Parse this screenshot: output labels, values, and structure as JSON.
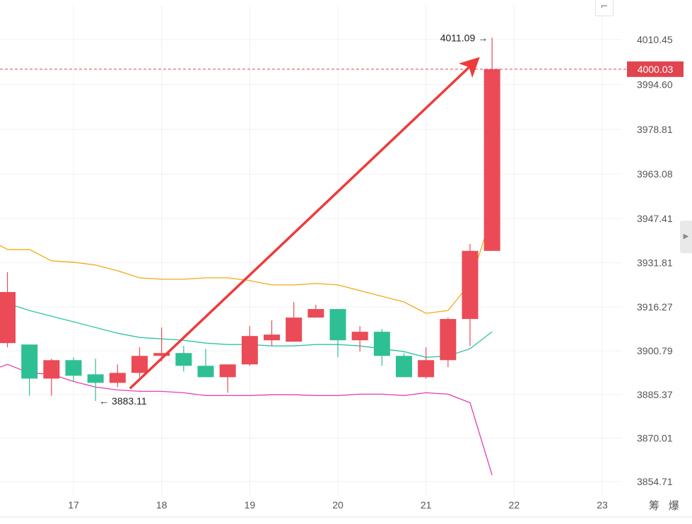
{
  "chart_data": {
    "type": "candlestick",
    "y_axis": {
      "ticks": [
        "4010.45",
        "3994.60",
        "3978.81",
        "3963.08",
        "3947.41",
        "3931.81",
        "3916.27",
        "3900.79",
        "3885.37",
        "3870.01",
        "3854.71"
      ],
      "range": [
        3848,
        4018
      ]
    },
    "x_axis": {
      "ticks": [
        {
          "label": "17",
          "x": 17.0
        },
        {
          "label": "18",
          "x": 18.0
        },
        {
          "label": "19",
          "x": 19.0
        },
        {
          "label": "20",
          "x": 20.0
        },
        {
          "label": "21",
          "x": 21.0
        },
        {
          "label": "22",
          "x": 22.0
        },
        {
          "label": "23",
          "x": 23.0
        }
      ],
      "range": [
        16.16,
        23.18
      ]
    },
    "candles": [
      {
        "x": 16.25,
        "open": 3903.5,
        "high": 3928.5,
        "low": 3902.0,
        "close": 3921.5
      },
      {
        "x": 16.5,
        "open": 3903.0,
        "high": 3903.0,
        "low": 3885.0,
        "close": 3891.0
      },
      {
        "x": 16.75,
        "open": 3891.0,
        "high": 3898.0,
        "low": 3885.0,
        "close": 3897.5
      },
      {
        "x": 17.0,
        "open": 3897.5,
        "high": 3898.5,
        "low": 3890.0,
        "close": 3892.0
      },
      {
        "x": 17.25,
        "open": 3892.5,
        "high": 3898.0,
        "low": 3883.11,
        "close": 3889.5
      },
      {
        "x": 17.5,
        "open": 3889.5,
        "high": 3896.0,
        "low": 3888.0,
        "close": 3893.0
      },
      {
        "x": 17.75,
        "open": 3893.0,
        "high": 3902.0,
        "low": 3891.5,
        "close": 3899.0
      },
      {
        "x": 18.0,
        "open": 3899.0,
        "high": 3909.0,
        "low": 3897.0,
        "close": 3900.0
      },
      {
        "x": 18.25,
        "open": 3900.0,
        "high": 3902.5,
        "low": 3893.5,
        "close": 3895.5
      },
      {
        "x": 18.5,
        "open": 3895.5,
        "high": 3901.5,
        "low": 3892.0,
        "close": 3891.5
      },
      {
        "x": 18.75,
        "open": 3891.5,
        "high": 3896.0,
        "low": 3886.0,
        "close": 3896.0
      },
      {
        "x": 19.0,
        "open": 3896.0,
        "high": 3909.5,
        "low": 3895.5,
        "close": 3906.0
      },
      {
        "x": 19.25,
        "open": 3904.5,
        "high": 3911.5,
        "low": 3902.5,
        "close": 3906.5
      },
      {
        "x": 19.5,
        "open": 3904.0,
        "high": 3918.0,
        "low": 3904.0,
        "close": 3912.5
      },
      {
        "x": 19.75,
        "open": 3912.5,
        "high": 3917.0,
        "low": 3912.5,
        "close": 3915.5
      },
      {
        "x": 20.0,
        "open": 3915.5,
        "high": 3915.5,
        "low": 3898.5,
        "close": 3904.5
      },
      {
        "x": 20.25,
        "open": 3904.5,
        "high": 3909.5,
        "low": 3900.5,
        "close": 3907.5
      },
      {
        "x": 20.5,
        "open": 3907.5,
        "high": 3908.5,
        "low": 3895.5,
        "close": 3899.0
      },
      {
        "x": 20.75,
        "open": 3899.0,
        "high": 3900.0,
        "low": 3891.5,
        "close": 3891.5
      },
      {
        "x": 21.0,
        "open": 3891.5,
        "high": 3902.0,
        "low": 3891.0,
        "close": 3897.5
      },
      {
        "x": 21.25,
        "open": 3897.5,
        "high": 3912.5,
        "low": 3895.0,
        "close": 3912.0
      },
      {
        "x": 21.5,
        "open": 3912.0,
        "high": 3938.5,
        "low": 3902.5,
        "close": 3936.0
      },
      {
        "x": 21.75,
        "open": 3936.0,
        "high": 4011.09,
        "low": 3936.0,
        "close": 4000.03
      }
    ],
    "ma_lines": [
      {
        "color": "#f2a916",
        "points": [
          [
            16.16,
            3938.0
          ],
          [
            16.25,
            3936.5
          ],
          [
            16.5,
            3936.5
          ],
          [
            16.75,
            3932.5
          ],
          [
            17.0,
            3932.0
          ],
          [
            17.25,
            3931.0
          ],
          [
            17.5,
            3929.0
          ],
          [
            17.75,
            3926.5
          ],
          [
            18.0,
            3926.0
          ],
          [
            18.25,
            3926.0
          ],
          [
            18.5,
            3926.5
          ],
          [
            18.75,
            3926.5
          ],
          [
            19.0,
            3925.5
          ],
          [
            19.25,
            3924.0
          ],
          [
            19.5,
            3924.0
          ],
          [
            19.75,
            3924.5
          ],
          [
            20.0,
            3924.0
          ],
          [
            20.25,
            3922.0
          ],
          [
            20.5,
            3920.0
          ],
          [
            20.75,
            3918.0
          ],
          [
            21.0,
            3914.0
          ],
          [
            21.25,
            3915.0
          ],
          [
            21.5,
            3924.5
          ],
          [
            21.75,
            3949.0
          ]
        ]
      },
      {
        "color": "#2ec5a3",
        "points": [
          [
            16.16,
            3919.0
          ],
          [
            16.25,
            3917.5
          ],
          [
            16.5,
            3915.0
          ],
          [
            16.75,
            3913.0
          ],
          [
            17.0,
            3911.0
          ],
          [
            17.25,
            3909.0
          ],
          [
            17.5,
            3907.0
          ],
          [
            17.75,
            3905.5
          ],
          [
            18.0,
            3905.0
          ],
          [
            18.25,
            3904.5
          ],
          [
            18.5,
            3903.5
          ],
          [
            18.75,
            3903.0
          ],
          [
            19.0,
            3903.0
          ],
          [
            19.25,
            3902.5
          ],
          [
            19.5,
            3902.5
          ],
          [
            19.75,
            3903.0
          ],
          [
            20.0,
            3903.0
          ],
          [
            20.25,
            3902.5
          ],
          [
            20.5,
            3901.5
          ],
          [
            20.75,
            3900.5
          ],
          [
            21.0,
            3898.5
          ],
          [
            21.25,
            3899.0
          ],
          [
            21.5,
            3901.5
          ],
          [
            21.75,
            3907.5
          ]
        ]
      },
      {
        "color": "#e23fb7",
        "points": [
          [
            16.16,
            3895.0
          ],
          [
            16.25,
            3896.0
          ],
          [
            16.5,
            3893.0
          ],
          [
            16.75,
            3892.5
          ],
          [
            17.0,
            3890.0
          ],
          [
            17.25,
            3888.0
          ],
          [
            17.5,
            3887.0
          ],
          [
            17.75,
            3886.5
          ],
          [
            18.0,
            3886.5
          ],
          [
            18.25,
            3886.0
          ],
          [
            18.5,
            3885.0
          ],
          [
            18.75,
            3885.0
          ],
          [
            19.0,
            3885.0
          ],
          [
            19.25,
            3885.3
          ],
          [
            19.5,
            3885.3
          ],
          [
            19.75,
            3885.0
          ],
          [
            20.0,
            3885.0
          ],
          [
            20.25,
            3885.5
          ],
          [
            20.5,
            3885.5
          ],
          [
            20.75,
            3885.0
          ],
          [
            21.0,
            3886.0
          ],
          [
            21.25,
            3885.5
          ],
          [
            21.5,
            3882.5
          ],
          [
            21.75,
            3857.0
          ]
        ]
      }
    ],
    "annotations": {
      "high_label": "4011.09",
      "low_label": "3883.11",
      "high_arrow": "→",
      "low_arrow": "←",
      "current_price": "4000.03"
    },
    "trend_arrow": {
      "from": [
        17.64,
        3887.5
      ],
      "to": [
        21.55,
        4002.5
      ],
      "color": "#ee3b3b"
    }
  },
  "colors": {
    "up": "#ea4b57",
    "down": "#2fbf94",
    "price_line": "#e0454f",
    "grid": "#f0f0f0",
    "axis_text": "#555555"
  },
  "ui": {
    "corner_icon": "collapse-icon",
    "corner_glyph": "⌐",
    "side_handle_glyph": "▶",
    "bottom_icons": "筹 爆"
  }
}
